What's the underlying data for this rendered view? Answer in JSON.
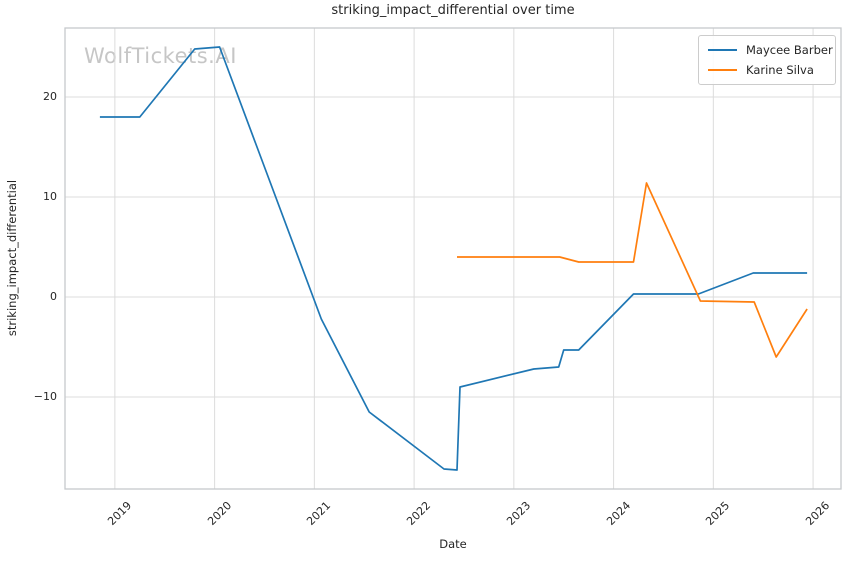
{
  "figure": {
    "title": "striking_impact_differential over time",
    "xlabel": "Date",
    "ylabel": "striking_impact_differential",
    "watermark": "WolfTickets.AI"
  },
  "colors": {
    "series_blue": "#1f77b4",
    "series_orange": "#ff7f0e",
    "grid": "#dcdcdc",
    "plot_border": "#c6c9cc",
    "text": "#262626",
    "watermark": "#c6c6c6"
  },
  "chart_data": {
    "type": "line",
    "title": "striking_impact_differential over time",
    "xlabel": "Date",
    "ylabel": "striking_impact_differential",
    "grid": true,
    "legend_position": "upper right",
    "xlim": [
      2018.5,
      2026.28
    ],
    "ylim": [
      -19.2,
      26.9
    ],
    "x_ticks": [
      2019,
      2020,
      2021,
      2022,
      2023,
      2024,
      2025,
      2026
    ],
    "y_ticks": [
      20,
      10,
      0,
      -10
    ],
    "series": [
      {
        "name": "Maycee Barber",
        "color": "#1f77b4",
        "x": [
          2018.85,
          2019.25,
          2019.8,
          2020.05,
          2021.07,
          2021.55,
          2022.3,
          2022.43,
          2022.46,
          2023.2,
          2023.45,
          2023.5,
          2023.65,
          2024.2,
          2024.85,
          2025.4,
          2025.94
        ],
        "y": [
          18.0,
          18.0,
          24.8,
          25.0,
          -2.2,
          -11.5,
          -17.2,
          -17.3,
          -9.0,
          -7.2,
          -7.0,
          -5.3,
          -5.3,
          0.3,
          0.3,
          2.4,
          2.4
        ]
      },
      {
        "name": "Karine Silva",
        "color": "#ff7f0e",
        "x": [
          2022.43,
          2023.46,
          2023.65,
          2024.2,
          2024.33,
          2024.87,
          2025.41,
          2025.63,
          2025.94
        ],
        "y": [
          4.0,
          4.0,
          3.5,
          3.5,
          11.4,
          -0.4,
          -0.5,
          -6.0,
          -1.2
        ]
      }
    ]
  }
}
